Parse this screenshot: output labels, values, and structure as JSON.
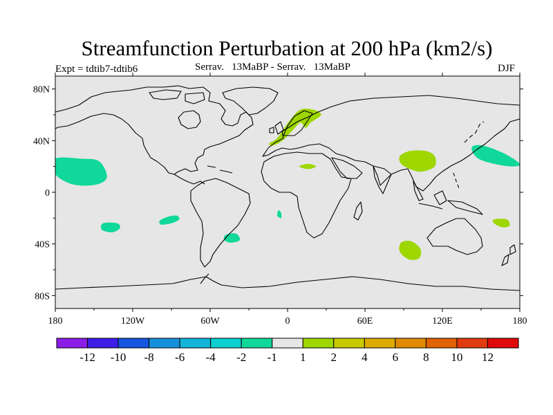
{
  "map": {
    "title": "Streamfunction Perturbation at 200 hPa (km2/s)",
    "subtitle_left": "Expt = tdtib7-tdtib6",
    "subtitle_center": "Serrav.   13MaBP - Serrav.   13MaBP",
    "subtitle_right": "DJF",
    "projection": "cylindrical equidistant",
    "lon_range": [
      -180,
      180
    ],
    "lat_range": [
      -90,
      90
    ],
    "lat_labels": [
      {
        "lat": 80,
        "label": "80N"
      },
      {
        "lat": 40,
        "label": "40N"
      },
      {
        "lat": 0,
        "label": "0"
      },
      {
        "lat": -40,
        "label": "40S"
      },
      {
        "lat": -80,
        "label": "80S"
      }
    ],
    "lon_labels": [
      {
        "lon": -180,
        "label": "180"
      },
      {
        "lon": -120,
        "label": "120W"
      },
      {
        "lon": -60,
        "label": "60W"
      },
      {
        "lon": 0,
        "label": "0"
      },
      {
        "lon": 60,
        "label": "60E"
      },
      {
        "lon": 120,
        "label": "120E"
      },
      {
        "lon": 180,
        "label": "180"
      }
    ],
    "background_color": "#e6e6e6",
    "anomaly_regions": [
      {
        "name": "north-pacific-negative",
        "sign": "negative",
        "class": "-2 to -1",
        "color": "#10d79a",
        "lon": -158,
        "lat": 13
      },
      {
        "name": "south-pacific-negative-1",
        "sign": "negative",
        "class": "-2 to -1",
        "color": "#10d79a",
        "lon": -137,
        "lat": -27
      },
      {
        "name": "south-pacific-negative-2",
        "sign": "negative",
        "class": "-2 to -1",
        "color": "#10d79a",
        "lon": -91,
        "lat": -21
      },
      {
        "name": "south-atlantic-negative-1",
        "sign": "negative",
        "class": "-2 to -1",
        "color": "#10d79a",
        "lon": -43,
        "lat": -35
      },
      {
        "name": "south-atlantic-negative-2",
        "sign": "negative",
        "class": "-2 to -1",
        "color": "#10d79a",
        "lon": -6,
        "lat": -17
      },
      {
        "name": "northwest-pacific-negative",
        "sign": "negative",
        "class": "-2 to -1",
        "color": "#10d79a",
        "lon": 162,
        "lat": 28
      },
      {
        "name": "europe-positive",
        "sign": "positive",
        "class": "1 to 2",
        "color": "#9ed600",
        "lon": -2,
        "lat": 52
      },
      {
        "name": "sahara-positive",
        "sign": "positive",
        "class": "1 to 2",
        "color": "#9ed600",
        "lon": 16,
        "lat": 20
      },
      {
        "name": "tibet-positive",
        "sign": "positive",
        "class": "1 to 2",
        "color": "#9ed600",
        "lon": 98,
        "lat": 24
      },
      {
        "name": "indian-ocean-positive",
        "sign": "positive",
        "class": "1 to 2",
        "color": "#9ed600",
        "lon": 95,
        "lat": -44
      },
      {
        "name": "tasman-positive",
        "sign": "positive",
        "class": "1 to 2",
        "color": "#9ed600",
        "lon": 165,
        "lat": -24
      }
    ]
  },
  "colorbar": {
    "labels": [
      "-12",
      "-10",
      "-8",
      "-6",
      "-4",
      "-2",
      "-1",
      "1",
      "2",
      "4",
      "6",
      "8",
      "10",
      "12"
    ],
    "colors": [
      "#8a1ee6",
      "#3d1ee6",
      "#1556e0",
      "#1790dc",
      "#13b4d8",
      "#0ecfcf",
      "#10d79a",
      "#e6e6e6",
      "#9ed600",
      "#c9c900",
      "#dcaa00",
      "#e08a00",
      "#e06200",
      "#e03c10",
      "#e00a0a"
    ]
  }
}
